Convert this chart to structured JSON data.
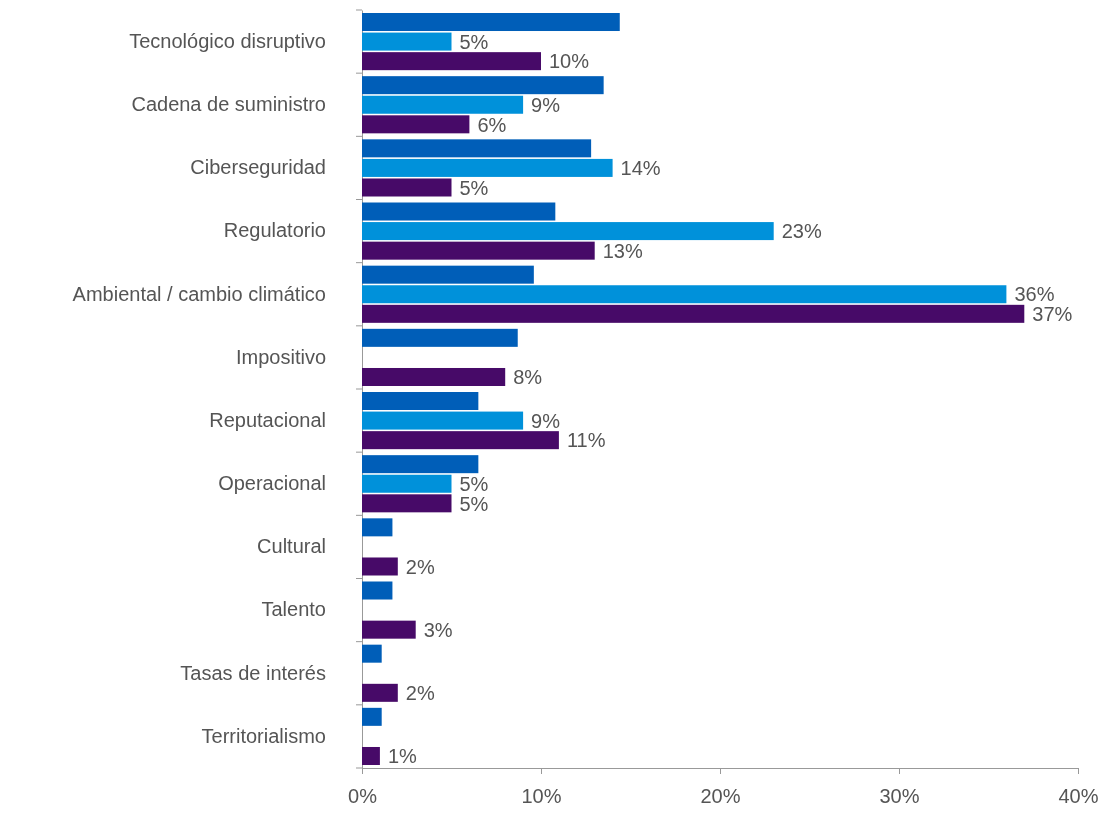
{
  "chart_data": {
    "type": "bar",
    "orientation": "horizontal",
    "categories": [
      "Tecnológico disruptivo",
      "Cadena de suministro",
      "Ciberseguridad",
      "Regulatorio",
      "Ambiental / cambio climático",
      "Impositivo",
      "Reputacional",
      "Operacional",
      "Cultural",
      "Talento",
      "Tasas de interés",
      "Territorialismo"
    ],
    "series": [
      {
        "color": "#005eb8",
        "values": [
          14.4,
          13.5,
          12.8,
          10.8,
          9.6,
          8.7,
          6.5,
          6.5,
          1.7,
          1.7,
          1.1,
          1.1
        ]
      },
      {
        "color": "#0091da",
        "values": [
          5,
          9,
          14,
          23,
          36,
          null,
          9,
          5,
          null,
          null,
          null,
          null
        ],
        "value_labels": [
          "5%",
          "9%",
          "14%",
          "23%",
          "36%",
          null,
          "9%",
          "5%",
          null,
          null,
          null,
          null
        ]
      },
      {
        "color": "#470a68",
        "values": [
          10,
          6,
          5,
          13,
          37,
          8,
          11,
          5,
          2,
          3,
          2,
          1
        ],
        "value_labels": [
          "10%",
          "6%",
          "5%",
          "13%",
          "37%",
          "8%",
          "11%",
          "5%",
          "2%",
          "3%",
          "2%",
          "1%"
        ]
      }
    ],
    "xlim": [
      0,
      40
    ],
    "xticks": [
      {
        "value": 0,
        "label": "0%"
      },
      {
        "value": 10,
        "label": "10%"
      },
      {
        "value": 20,
        "label": "20%"
      },
      {
        "value": 30,
        "label": "30%"
      },
      {
        "value": 40,
        "label": "40%"
      }
    ],
    "grid": false
  }
}
